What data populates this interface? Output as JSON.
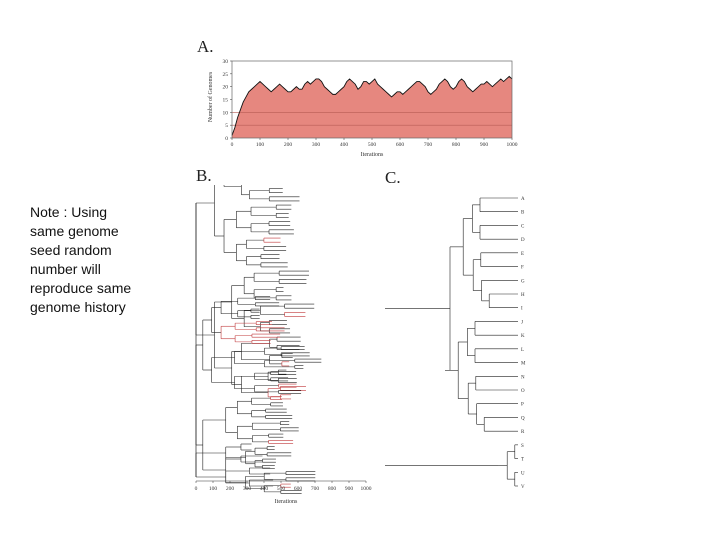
{
  "note": {
    "lines": [
      "Note : Using",
      "same genome",
      "seed random",
      "number will",
      "reproduce same",
      "genome history"
    ]
  },
  "panels": {
    "a_label": "A.",
    "b_label": "B.",
    "c_label": "C."
  },
  "chart_data": [
    {
      "type": "area",
      "panel": "A",
      "xlabel": "Iterations",
      "ylabel": "Number of Genomes",
      "xlim": [
        0,
        1000
      ],
      "ylim": [
        0,
        30
      ],
      "x_ticks": [
        0,
        100,
        200,
        300,
        400,
        500,
        600,
        700,
        800,
        900,
        1000
      ],
      "y_ticks": [
        0,
        5,
        10,
        15,
        20,
        25,
        30
      ],
      "x": [
        0,
        10,
        20,
        30,
        40,
        50,
        60,
        70,
        80,
        90,
        100,
        110,
        120,
        130,
        140,
        150,
        160,
        170,
        180,
        190,
        200,
        210,
        220,
        230,
        240,
        250,
        260,
        270,
        280,
        290,
        300,
        310,
        320,
        330,
        340,
        350,
        360,
        370,
        380,
        390,
        400,
        410,
        420,
        430,
        440,
        450,
        460,
        470,
        480,
        490,
        500,
        510,
        520,
        530,
        540,
        550,
        560,
        570,
        580,
        590,
        600,
        610,
        620,
        630,
        640,
        650,
        660,
        670,
        680,
        690,
        700,
        710,
        720,
        730,
        740,
        750,
        760,
        770,
        780,
        790,
        800,
        810,
        820,
        830,
        840,
        850,
        860,
        870,
        880,
        890,
        900,
        910,
        920,
        930,
        940,
        950,
        960,
        970,
        980,
        990,
        1000
      ],
      "values": [
        1,
        4,
        8,
        11,
        14,
        16,
        18,
        19,
        20,
        21,
        22,
        21,
        20,
        19,
        18,
        19,
        20,
        21,
        20,
        19,
        18,
        18,
        19,
        20,
        19,
        19,
        21,
        22,
        21,
        22,
        23,
        23,
        22,
        20,
        19,
        18,
        17,
        17,
        18,
        19,
        20,
        22,
        23,
        22,
        21,
        19,
        20,
        22,
        22,
        21,
        22,
        23,
        21,
        20,
        19,
        18,
        17,
        16,
        17,
        18,
        18,
        17,
        18,
        19,
        20,
        21,
        22,
        22,
        21,
        20,
        18,
        17,
        18,
        19,
        21,
        22,
        23,
        22,
        20,
        19,
        20,
        22,
        23,
        22,
        20,
        19,
        18,
        19,
        20,
        21,
        21,
        22,
        21,
        20,
        21,
        22,
        23,
        22,
        23,
        24,
        23
      ],
      "grid": false,
      "fill_color": "#e6877f",
      "line_color": "#111111"
    },
    {
      "type": "tree",
      "panel": "B",
      "xlabel": "Iterations",
      "xlim": [
        0,
        1000
      ],
      "x_ticks": [
        0,
        100,
        200,
        300,
        400,
        500,
        600,
        700,
        800,
        900,
        1000
      ],
      "line_color": "#222222",
      "highlight_color": "#c0393b"
    },
    {
      "type": "tree",
      "panel": "C",
      "leaf_labels": [
        "A",
        "B",
        "C",
        "D",
        "E",
        "F",
        "G",
        "H",
        "I",
        "J",
        "K",
        "L",
        "M",
        "N",
        "O",
        "P",
        "Q",
        "R",
        "S",
        "T",
        "U",
        "V"
      ],
      "line_color": "#222222"
    }
  ]
}
